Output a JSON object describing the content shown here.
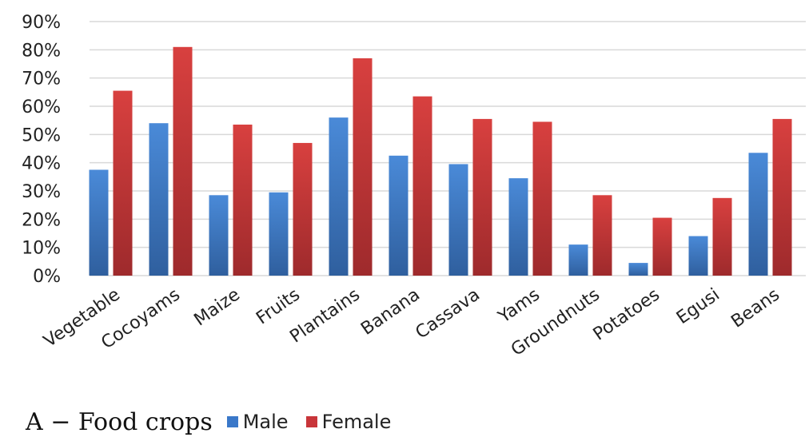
{
  "chart_data": {
    "type": "bar",
    "categories": [
      "Vegetable",
      "Cocoyams",
      "Maize",
      "Fruits",
      "Plantains",
      "Banana",
      "Cassava",
      "Yams",
      "Groundnuts",
      "Potatoes",
      "Egusi",
      "Beans"
    ],
    "series": [
      {
        "name": "Male",
        "color": "#3a78c9",
        "values": [
          37.5,
          54,
          28.5,
          29.5,
          56,
          42.5,
          39.5,
          34.5,
          11,
          4.5,
          14,
          43.5
        ]
      },
      {
        "name": "Female",
        "color": "#c8353a",
        "values": [
          65.5,
          81,
          53.5,
          47,
          77,
          63.5,
          55.5,
          54.5,
          28.5,
          20.5,
          27.5,
          55.5
        ]
      }
    ],
    "ylim": [
      0,
      90
    ],
    "yticks": [
      "0%",
      "10%",
      "20%",
      "30%",
      "40%",
      "50%",
      "60%",
      "70%",
      "80%",
      "90%"
    ],
    "grid": true,
    "legend_placement": "bottom",
    "caption": "A − Food crops"
  }
}
